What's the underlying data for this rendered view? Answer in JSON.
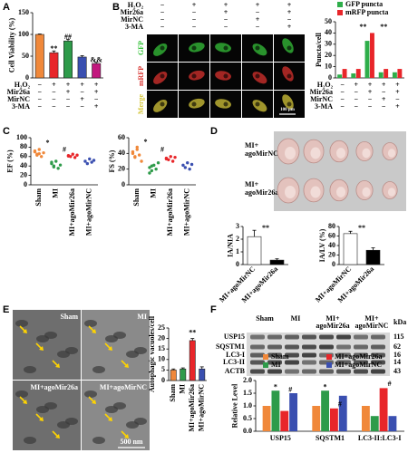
{
  "panel_letters": [
    "A",
    "B",
    "C",
    "D",
    "E",
    "F"
  ],
  "B_micrographs": {
    "conditions": [
      {
        "name": "H₂O₂",
        "signs": [
          "−",
          "+",
          "+",
          "+",
          "+"
        ]
      },
      {
        "name": "Mir26a",
        "signs": [
          "−",
          "−",
          "+",
          "−",
          "+"
        ]
      },
      {
        "name": "MirNC",
        "signs": [
          "−",
          "−",
          "−",
          "+",
          "−"
        ]
      },
      {
        "name": "3-MA",
        "signs": [
          "−",
          "−",
          "−",
          "−",
          "+"
        ]
      }
    ],
    "row_labels": [
      "GFP",
      "mRFP",
      "Merge"
    ],
    "scale_bar": "100 μm"
  },
  "D_hearts": {
    "row_labels": [
      [
        "MI+",
        "agoMirNC"
      ],
      [
        "MI+",
        "agoMir26a"
      ]
    ]
  },
  "E_micrographs": {
    "labels": [
      "Sham",
      "MI",
      "MI+agoMir26a",
      "MI+agoMirNC"
    ],
    "scale_bar": "500 nm"
  },
  "F_blot": {
    "lanes": [
      [
        "Sham"
      ],
      [
        "MI"
      ],
      [
        "MI+",
        "agoMir26a"
      ],
      [
        "MI+",
        "agoMirNC"
      ]
    ],
    "unit": "kDa",
    "proteins": [
      "USP15",
      "SQSTM1",
      "LC3-I",
      "LC3-II",
      "ACTB"
    ],
    "markers": [
      115,
      62,
      16,
      14,
      43
    ]
  },
  "chart_data": [
    {
      "type": "bar",
      "y_label": "Cell Viability (%)",
      "values": [
        100,
        58,
        85,
        48,
        33
      ],
      "errors": [
        1,
        4,
        4,
        3,
        3
      ],
      "colors": [
        "#f0883a",
        "#e8262a",
        "#2e9b4a",
        "#3a4fb0",
        "#c2187e"
      ],
      "ylim": [
        0,
        150
      ],
      "yticks": [
        0,
        50,
        100,
        150
      ],
      "annotations": [
        "**",
        "##",
        "&&"
      ],
      "conditions": [
        {
          "name": "H₂O₂",
          "signs": [
            "−",
            "+",
            "+",
            "+",
            "+"
          ]
        },
        {
          "name": "Mir26a",
          "signs": [
            "−",
            "−",
            "+",
            "−",
            "+"
          ]
        },
        {
          "name": "MirNC",
          "signs": [
            "−",
            "−",
            "−",
            "+",
            "−"
          ]
        },
        {
          "name": "3-MA",
          "signs": [
            "−",
            "−",
            "−",
            "−",
            "+"
          ]
        }
      ]
    },
    {
      "type": "grouped_bar",
      "y_label": "Puncta/cell",
      "ylim": [
        0,
        50
      ],
      "yticks": [
        0,
        10,
        20,
        30,
        40,
        50
      ],
      "series": [
        {
          "name": "GFP puncta",
          "color": "#2eae4a",
          "values": [
            3,
            4,
            33,
            5,
            5
          ]
        },
        {
          "name": "mRFP puncta",
          "color": "#e8262a",
          "values": [
            8,
            8,
            40,
            8,
            8
          ]
        }
      ],
      "annotations": [
        "**",
        "**"
      ],
      "conditions": [
        {
          "name": "H₂O₂",
          "signs": [
            "−",
            "+",
            "+",
            "+",
            "+"
          ]
        },
        {
          "name": "Mir26a",
          "signs": [
            "−",
            "−",
            "+",
            "−",
            "+"
          ]
        },
        {
          "name": "MirNC",
          "signs": [
            "−",
            "−",
            "−",
            "+",
            "−"
          ]
        },
        {
          "name": "3-MA",
          "signs": [
            "−",
            "−",
            "−",
            "−",
            "+"
          ]
        }
      ]
    },
    {
      "type": "strip",
      "y_label": "EF (%)",
      "ylim": [
        0,
        100
      ],
      "yticks": [
        0,
        20,
        40,
        60,
        80,
        100
      ],
      "categories": [
        "Sham",
        "MI",
        "MI+agoMir26a",
        "MI+agoMirNC"
      ],
      "values": [
        [
          70,
          65,
          75,
          60,
          68,
          72,
          63,
          66
        ],
        [
          45,
          40,
          50,
          35,
          42,
          48,
          38
        ],
        [
          62,
          60,
          65,
          58,
          63,
          61
        ],
        [
          50,
          45,
          55,
          48,
          52
        ]
      ],
      "colors": [
        "#f0883a",
        "#2e9b4a",
        "#e8262a",
        "#3a4fb0"
      ],
      "annotations": [
        "*",
        "#"
      ]
    },
    {
      "type": "strip",
      "y_label": "FS (%)",
      "ylim": [
        0,
        60
      ],
      "yticks": [
        0,
        20,
        40,
        60
      ],
      "categories": [
        "Sham",
        "MI",
        "MI+agoMir26a",
        "MI+agoMirNC"
      ],
      "values": [
        [
          40,
          35,
          45,
          38,
          30,
          42,
          36,
          48
        ],
        [
          22,
          18,
          25,
          20,
          28,
          15,
          24
        ],
        [
          34,
          32,
          36,
          30,
          35,
          33
        ],
        [
          25,
          22,
          28,
          20,
          26
        ]
      ],
      "colors": [
        "#f0883a",
        "#2e9b4a",
        "#e8262a",
        "#3a4fb0"
      ],
      "annotations": [
        "*",
        "#"
      ]
    },
    {
      "type": "bar",
      "y_label": "IA/NIA",
      "ylim": [
        0,
        3
      ],
      "yticks": [
        0,
        1,
        2,
        3
      ],
      "categories": [
        "MI+agoMirNC",
        "MI+agoMir26a"
      ],
      "values": [
        2.2,
        0.35
      ],
      "errors": [
        0.5,
        0.1
      ],
      "colors": [
        "#ffffff",
        "#000000"
      ],
      "annotations": [
        "**"
      ]
    },
    {
      "type": "bar",
      "y_label": "IA/LV (%)",
      "ylim": [
        0,
        80
      ],
      "yticks": [
        0,
        20,
        40,
        60,
        80
      ],
      "categories": [
        "MI+agoMirNC",
        "MI+agoMir26a"
      ],
      "values": [
        65,
        30
      ],
      "errors": [
        5,
        5
      ],
      "colors": [
        "#ffffff",
        "#000000"
      ],
      "annotations": [
        "**"
      ]
    },
    {
      "type": "bar",
      "y_label": "Autophagic vacuoles/cell",
      "ylim": [
        0,
        25
      ],
      "yticks": [
        0,
        5,
        10,
        15,
        20,
        25
      ],
      "categories": [
        "Sham",
        "MI",
        "MI+agoMir26a",
        "MI+agoMirNC"
      ],
      "values": [
        5,
        5.5,
        19,
        5.5
      ],
      "errors": [
        0.5,
        0.5,
        1,
        1
      ],
      "colors": [
        "#f0883a",
        "#2e9b4a",
        "#e8262a",
        "#3a4fb0"
      ],
      "annotations": [
        "**"
      ]
    },
    {
      "type": "grouped_bar",
      "y_label": "Relative Level",
      "ylim": [
        0,
        2
      ],
      "yticks": [
        {
          "value": 0,
          "label": "0.0"
        },
        {
          "value": 0.5,
          "label": "0.5"
        },
        {
          "value": 1,
          "label": "1.0"
        },
        {
          "value": 1.5,
          "label": "1.5"
        },
        {
          "value": 2,
          "label": "2.0"
        }
      ],
      "categories": [
        "USP15",
        "SQSTM1",
        "LC3-II:LC3-I"
      ],
      "series": [
        {
          "name": "Sham",
          "color": "#f0883a",
          "values": [
            1,
            1,
            1
          ]
        },
        {
          "name": "MI",
          "color": "#2e9b4a",
          "values": [
            1.6,
            1.6,
            0.6
          ]
        },
        {
          "name": "MI+agoMir26a",
          "color": "#e8262a",
          "values": [
            0.8,
            0.9,
            1.7
          ]
        },
        {
          "name": "MI+agoMirNC",
          "color": "#3a4fb0",
          "values": [
            1.5,
            1.4,
            0.6
          ]
        }
      ],
      "annotations": [
        "*",
        "#",
        "*",
        "#",
        "#"
      ]
    }
  ]
}
